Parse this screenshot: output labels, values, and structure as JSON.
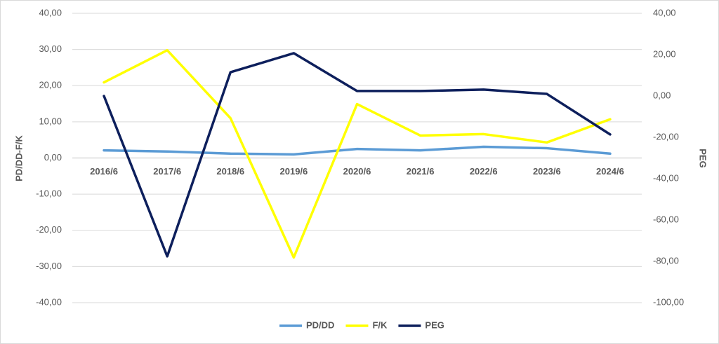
{
  "chart_data": {
    "type": "line",
    "categories": [
      "2016/6",
      "2017/6",
      "2018/6",
      "2019/6",
      "2020/6",
      "2021/6",
      "2022/6",
      "2023/6",
      "2024/6"
    ],
    "series": [
      {
        "name": "PD/DD",
        "color": "#5b9bd5",
        "values": [
          2.1,
          1.8,
          1.2,
          1.0,
          2.5,
          2.1,
          3.1,
          2.7,
          1.2
        ]
      },
      {
        "name": "F/K",
        "color": "#ffff00",
        "values": [
          20.9,
          29.8,
          11.0,
          -27.5,
          14.9,
          6.2,
          6.6,
          4.3,
          10.7
        ]
      },
      {
        "name": "PEG",
        "color": "#0d1f5c",
        "axis": "y2",
        "values": [
          0.0,
          -77.6,
          11.5,
          20.7,
          2.4,
          2.4,
          3.1,
          1.0,
          -18.6
        ]
      }
    ],
    "y_label": "PD/DD-F/K",
    "y2_label": "PEG",
    "ylim": [
      -40,
      40
    ],
    "yticks": [
      {
        "value": -40,
        "label": "-40,00"
      },
      {
        "value": -30,
        "label": "-30,00"
      },
      {
        "value": -20,
        "label": "-20,00"
      },
      {
        "value": -10,
        "label": "-10,00"
      },
      {
        "value": 0,
        "label": "0,00"
      },
      {
        "value": 10,
        "label": "10,00"
      },
      {
        "value": 20,
        "label": "20,00"
      },
      {
        "value": 30,
        "label": "30,00"
      },
      {
        "value": 40,
        "label": "40,00"
      }
    ],
    "y2lim": [
      -100,
      40
    ],
    "y2ticks": [
      {
        "value": -100,
        "label": "-100,00"
      },
      {
        "value": -80,
        "label": "-80,00"
      },
      {
        "value": -60,
        "label": "-60,00"
      },
      {
        "value": -40,
        "label": "-40,00"
      },
      {
        "value": -20,
        "label": "-20,00"
      },
      {
        "value": 0,
        "label": "0,00"
      },
      {
        "value": 20,
        "label": "20,00"
      },
      {
        "value": 40,
        "label": "40,00"
      }
    ],
    "grid": true,
    "legend": "bottom"
  }
}
